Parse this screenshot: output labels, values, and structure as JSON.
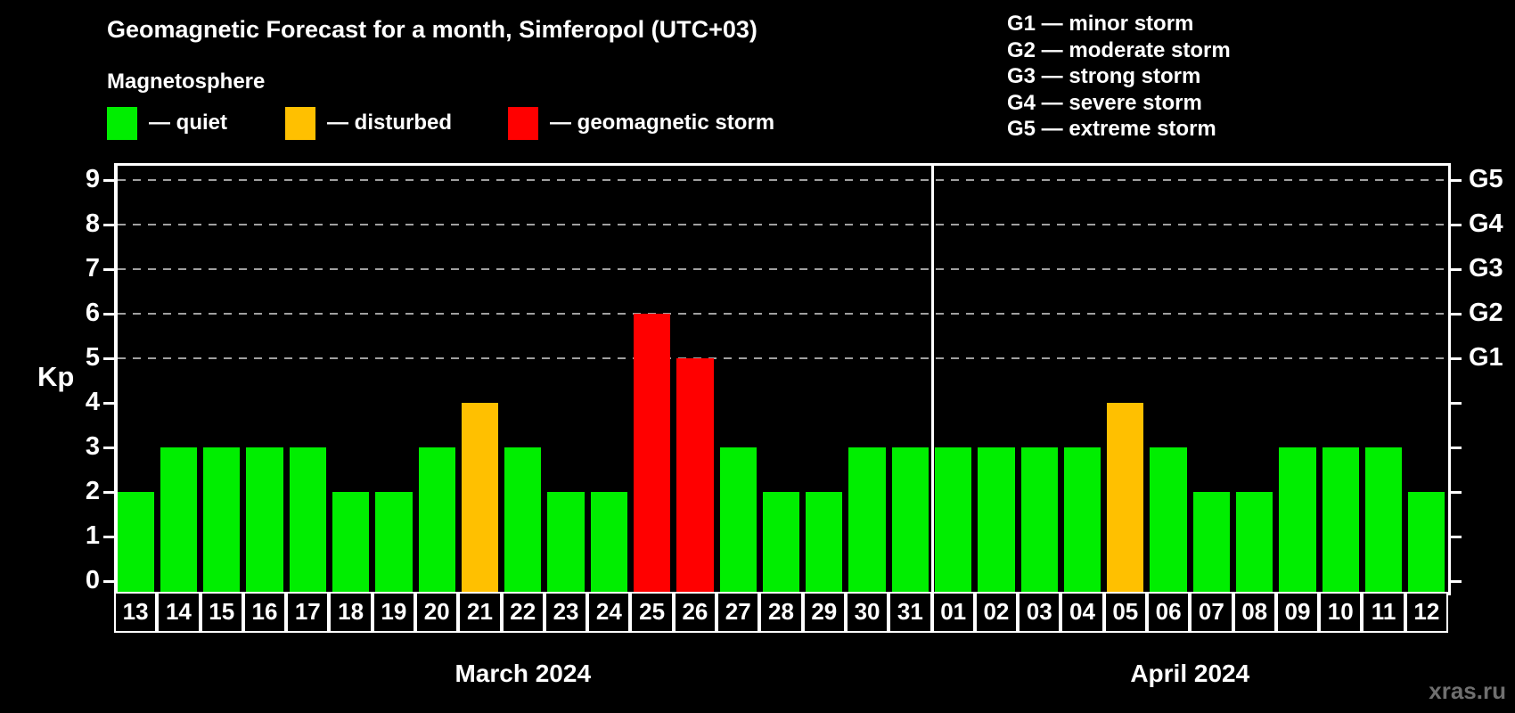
{
  "header": {
    "title": "Geomagnetic Forecast for a month, Simferopol (UTC+03)",
    "subtitle": "Magnetosphere"
  },
  "legend": {
    "items": [
      {
        "name": "quiet",
        "color": "#00ee00",
        "label": "— quiet"
      },
      {
        "name": "disturbed",
        "color": "#ffc000",
        "label": "— disturbed"
      },
      {
        "name": "storm",
        "color": "#ff0000",
        "label": "— geomagnetic storm"
      }
    ]
  },
  "storm_scale": {
    "items": [
      "G1 — minor storm",
      "G2 — moderate storm",
      "G3 — strong storm",
      "G4 — severe storm",
      "G5 — extreme storm"
    ]
  },
  "watermark": "xras.ru",
  "chart_data": {
    "type": "bar",
    "title": "Geomagnetic Forecast for a month, Simferopol (UTC+03)",
    "ylabel": "Kp",
    "ylim": [
      0,
      9.4
    ],
    "yticks": [
      0,
      1,
      2,
      3,
      4,
      5,
      6,
      7,
      8,
      9
    ],
    "gridlines_at": [
      5,
      6,
      7,
      8,
      9
    ],
    "grid": "dashed-horizontal",
    "legend_position": "top",
    "right_axis": [
      {
        "kp": 5,
        "label": "G1"
      },
      {
        "kp": 6,
        "label": "G2"
      },
      {
        "kp": 7,
        "label": "G3"
      },
      {
        "kp": 8,
        "label": "G4"
      },
      {
        "kp": 9,
        "label": "G5"
      }
    ],
    "status_colors": {
      "quiet": "#00ee00",
      "disturbed": "#ffc000",
      "storm": "#ff0000"
    },
    "months": [
      {
        "label": "March 2024",
        "slug": "march",
        "days": [
          {
            "day": "13",
            "kp": 2,
            "status": "quiet"
          },
          {
            "day": "14",
            "kp": 3,
            "status": "quiet"
          },
          {
            "day": "15",
            "kp": 3,
            "status": "quiet"
          },
          {
            "day": "16",
            "kp": 3,
            "status": "quiet"
          },
          {
            "day": "17",
            "kp": 3,
            "status": "quiet"
          },
          {
            "day": "18",
            "kp": 2,
            "status": "quiet"
          },
          {
            "day": "19",
            "kp": 2,
            "status": "quiet"
          },
          {
            "day": "20",
            "kp": 3,
            "status": "quiet"
          },
          {
            "day": "21",
            "kp": 4,
            "status": "disturbed"
          },
          {
            "day": "22",
            "kp": 3,
            "status": "quiet"
          },
          {
            "day": "23",
            "kp": 2,
            "status": "quiet"
          },
          {
            "day": "24",
            "kp": 2,
            "status": "quiet"
          },
          {
            "day": "25",
            "kp": 6,
            "status": "storm"
          },
          {
            "day": "26",
            "kp": 5,
            "status": "storm"
          },
          {
            "day": "27",
            "kp": 3,
            "status": "quiet"
          },
          {
            "day": "28",
            "kp": 2,
            "status": "quiet"
          },
          {
            "day": "29",
            "kp": 2,
            "status": "quiet"
          },
          {
            "day": "30",
            "kp": 3,
            "status": "quiet"
          },
          {
            "day": "31",
            "kp": 3,
            "status": "quiet"
          }
        ]
      },
      {
        "label": "April 2024",
        "slug": "april",
        "days": [
          {
            "day": "01",
            "kp": 3,
            "status": "quiet"
          },
          {
            "day": "02",
            "kp": 3,
            "status": "quiet"
          },
          {
            "day": "03",
            "kp": 3,
            "status": "quiet"
          },
          {
            "day": "04",
            "kp": 3,
            "status": "quiet"
          },
          {
            "day": "05",
            "kp": 4,
            "status": "disturbed"
          },
          {
            "day": "06",
            "kp": 3,
            "status": "quiet"
          },
          {
            "day": "07",
            "kp": 2,
            "status": "quiet"
          },
          {
            "day": "08",
            "kp": 2,
            "status": "quiet"
          },
          {
            "day": "09",
            "kp": 3,
            "status": "quiet"
          },
          {
            "day": "10",
            "kp": 3,
            "status": "quiet"
          },
          {
            "day": "11",
            "kp": 3,
            "status": "quiet"
          },
          {
            "day": "12",
            "kp": 2,
            "status": "quiet"
          }
        ]
      }
    ]
  }
}
